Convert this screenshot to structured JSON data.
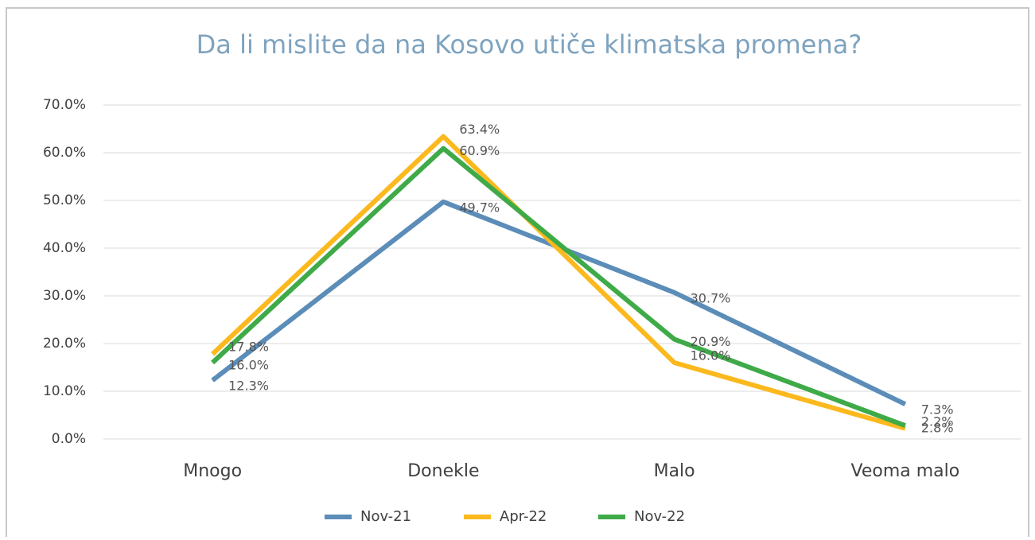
{
  "chart_data": {
    "type": "line",
    "title": "Da li mislite da na Kosovo utiče klimatska promena?",
    "categories": [
      "Mnogo",
      "Donekle",
      "Malo",
      "Veoma malo"
    ],
    "series": [
      {
        "name": "Nov-21",
        "color": "#5b8db8",
        "values": [
          12.3,
          49.7,
          30.7,
          7.3
        ],
        "value_labels": [
          "12.3%",
          "49.7%",
          "30.7%",
          "7.3%"
        ]
      },
      {
        "name": "Apr-22",
        "color": "#fbb91e",
        "values": [
          17.8,
          63.4,
          16.0,
          2.2
        ],
        "value_labels": [
          "17.8%",
          "63.4%",
          "16.0%",
          "2.2%"
        ]
      },
      {
        "name": "Nov-22",
        "color": "#3faa48",
        "values": [
          16.0,
          60.9,
          20.9,
          2.8
        ],
        "value_labels": [
          "16.0%",
          "60.9%",
          "20.9%",
          "2.8%"
        ]
      }
    ],
    "ylim": [
      0,
      70
    ],
    "yticks": [
      {
        "value": 0,
        "label": "0.0%"
      },
      {
        "value": 10,
        "label": "10.0%"
      },
      {
        "value": 20,
        "label": "20.0%"
      },
      {
        "value": 30,
        "label": "30.0%"
      },
      {
        "value": 40,
        "label": "40.0%"
      },
      {
        "value": 50,
        "label": "50.0%"
      },
      {
        "value": 60,
        "label": "60.0%"
      },
      {
        "value": 70,
        "label": "70.0%"
      }
    ],
    "grid": true,
    "legend": "bottom"
  }
}
